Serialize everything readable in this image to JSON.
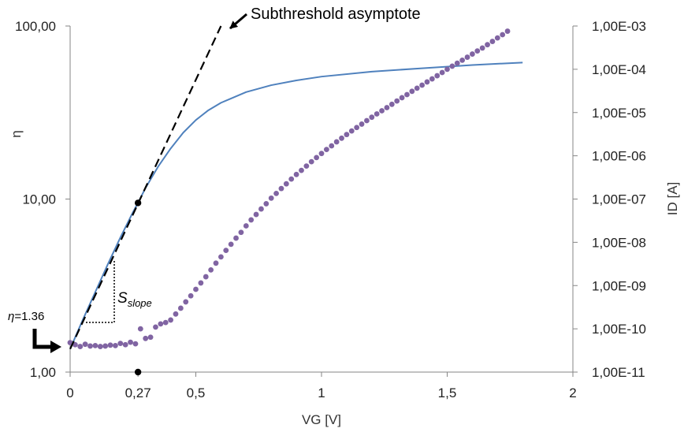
{
  "chart_data": {
    "type": "line",
    "xlabel": "VG [V]",
    "ylabel_left": "η",
    "ylabel_right": "ID [A]",
    "xlim": [
      0,
      2
    ],
    "x_ticks": [
      {
        "value": 0,
        "label": "0"
      },
      {
        "value": 0.27,
        "label": "0,27"
      },
      {
        "value": 0.5,
        "label": "0,5"
      },
      {
        "value": 1,
        "label": "1"
      },
      {
        "value": 1.5,
        "label": "1,5"
      },
      {
        "value": 2,
        "label": "2"
      }
    ],
    "ylim_left": [
      1,
      100
    ],
    "y_left_scale": "log",
    "y_left_ticks": [
      {
        "value": 1,
        "label": "1,00"
      },
      {
        "value": 10,
        "label": "10,00"
      },
      {
        "value": 100,
        "label": "100,00"
      }
    ],
    "ylim_right": [
      1e-11,
      0.001
    ],
    "y_right_scale": "log",
    "y_right_ticks": [
      {
        "value": 0.001,
        "label": "1,00E-03"
      },
      {
        "value": 0.0001,
        "label": "1,00E-04"
      },
      {
        "value": 1e-05,
        "label": "1,00E-05"
      },
      {
        "value": 1e-06,
        "label": "1,00E-06"
      },
      {
        "value": 1e-07,
        "label": "1,00E-07"
      },
      {
        "value": 1e-08,
        "label": "1,00E-08"
      },
      {
        "value": 1e-09,
        "label": "1,00E-09"
      },
      {
        "value": 1e-10,
        "label": "1,00E-10"
      },
      {
        "value": 1e-11,
        "label": "1,00E-11"
      }
    ],
    "series": [
      {
        "axis": "left",
        "style": "line",
        "color": "#4f81bd",
        "x": [
          0.0,
          0.05,
          0.1,
          0.15,
          0.2,
          0.25,
          0.27,
          0.3,
          0.35,
          0.4,
          0.45,
          0.5,
          0.55,
          0.6,
          0.7,
          0.8,
          0.9,
          1.0,
          1.2,
          1.4,
          1.6,
          1.8
        ],
        "y": [
          1.36,
          2.0,
          2.9,
          4.2,
          6.0,
          8.4,
          9.5,
          11.6,
          15.4,
          19.6,
          24.2,
          28.6,
          32.6,
          36.0,
          41.5,
          45.5,
          48.5,
          51.0,
          54.5,
          57.0,
          59.5,
          61.5
        ]
      },
      {
        "axis": "right",
        "style": "points",
        "color": "#8064a2",
        "x": [
          0.0,
          0.02,
          0.04,
          0.06,
          0.08,
          0.1,
          0.12,
          0.14,
          0.16,
          0.18,
          0.2,
          0.22,
          0.24,
          0.26,
          0.28,
          0.3,
          0.32,
          0.34,
          0.36,
          0.38,
          0.4,
          0.42,
          0.44,
          0.46,
          0.48,
          0.5,
          0.52,
          0.54,
          0.56,
          0.58,
          0.6,
          0.62,
          0.64,
          0.66,
          0.68,
          0.7,
          0.72,
          0.74,
          0.76,
          0.78,
          0.8,
          0.82,
          0.84,
          0.86,
          0.88,
          0.9,
          0.92,
          0.94,
          0.96,
          0.98,
          1.0,
          1.02,
          1.04,
          1.06,
          1.08,
          1.1,
          1.12,
          1.14,
          1.16,
          1.18,
          1.2,
          1.22,
          1.24,
          1.26,
          1.28,
          1.3,
          1.32,
          1.34,
          1.36,
          1.38,
          1.4,
          1.42,
          1.44,
          1.46,
          1.48,
          1.5,
          1.52,
          1.54,
          1.56,
          1.58,
          1.6,
          1.62,
          1.64,
          1.66,
          1.68,
          1.7,
          1.72,
          1.74
        ],
        "y": [
          4.8e-11,
          4.3e-11,
          3.9e-11,
          4.4e-11,
          4e-11,
          4.1e-11,
          3.9e-11,
          4e-11,
          4.2e-11,
          4.1e-11,
          4.6e-11,
          4.3e-11,
          4.9e-11,
          4.5e-11,
          1e-10,
          6e-11,
          6.4e-11,
          1.1e-10,
          1.3e-10,
          1.4e-10,
          1.6e-10,
          2.2e-10,
          3e-10,
          4.2e-10,
          5.8e-10,
          8.2e-10,
          1.15e-09,
          1.6e-09,
          2.3e-09,
          3.3e-09,
          4.6e-09,
          6.5e-09,
          9e-09,
          1.25e-08,
          1.7e-08,
          2.4e-08,
          3.3e-08,
          4.4e-08,
          5.9e-08,
          7.8e-08,
          1.05e-07,
          1.35e-07,
          1.75e-07,
          2.25e-07,
          2.9e-07,
          3.7e-07,
          4.6e-07,
          5.8e-07,
          7.3e-07,
          9.1e-07,
          1.13e-06,
          1.4e-06,
          1.7e-06,
          2.1e-06,
          2.55e-06,
          3.1e-06,
          3.75e-06,
          4.5e-06,
          5.4e-06,
          6.5e-06,
          7.8e-06,
          9.3e-06,
          1.1e-05,
          1.3e-05,
          1.55e-05,
          1.85e-05,
          2.2e-05,
          2.6e-05,
          3.1e-05,
          3.65e-05,
          4.3e-05,
          5.1e-05,
          6e-05,
          7.1e-05,
          8.4e-05,
          0.0001,
          0.000118,
          0.000138,
          0.000162,
          0.00019,
          0.000225,
          0.000265,
          0.00031,
          0.00037,
          0.00044,
          0.00053,
          0.00063,
          0.00076
        ]
      },
      {
        "axis": "left",
        "style": "dashed",
        "color": "#000000",
        "x": [
          0.0,
          0.6
        ],
        "y": [
          1.36,
          100
        ]
      }
    ],
    "markers": [
      {
        "axis": "left",
        "x": 0.27,
        "y": 9.5
      },
      {
        "axis": "left",
        "x": 0.27,
        "y": 1.0
      }
    ],
    "annotations": {
      "asymptote_label": "Subthreshold asymptote",
      "eta_prefix": "η",
      "eta_value": "=1.36",
      "slope_main": "S",
      "slope_sub": "slope"
    }
  }
}
